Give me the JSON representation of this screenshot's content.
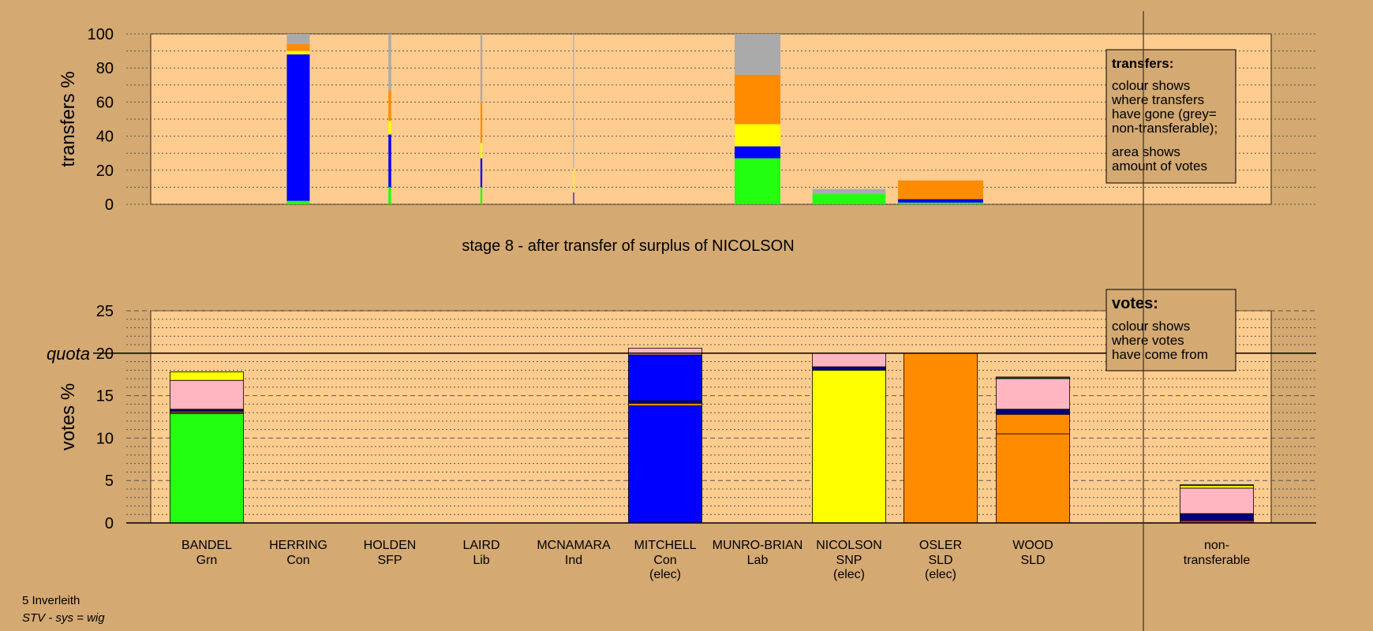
{
  "colors": {
    "background": "#d4a972",
    "plot_bg": "#ffcc8f",
    "Grn": "#22ff11",
    "Con": "#0000ff",
    "SNP": "#ffff00",
    "SLD": "#ff8c00",
    "Lab": "#ffb6c1",
    "Ind": "#aa3344",
    "SFP": "#000080",
    "nontransferable": "#aaaaaa"
  },
  "stage_title": "stage 8 - after transfer of surplus of NICOLSON",
  "footer": {
    "line1": "5 Inverleith",
    "line2": "STV - sys = wig"
  },
  "legend_transfers": {
    "title": "transfers:",
    "lines1": [
      "colour shows",
      "where transfers",
      "have gone (grey=",
      "non-transferable);"
    ],
    "lines2": [
      "area shows",
      "amount of votes"
    ]
  },
  "legend_votes": {
    "title": "votes:",
    "lines": [
      "colour shows",
      "where votes",
      "have come from"
    ]
  },
  "chart_data": [
    {
      "type": "bar",
      "subtype": "stacked-variable-width",
      "ylabel": "transfers %",
      "ylim": [
        0,
        100
      ],
      "yticks": [
        0,
        20,
        40,
        60,
        80,
        100
      ],
      "grid": true,
      "categories": [
        "BANDEL",
        "HERRING",
        "HOLDEN",
        "LAIRD",
        "MCNAMARA",
        "MITCHELL",
        "MUNRO-BRIAN",
        "NICOLSON",
        "OSLER",
        "WOOD"
      ],
      "bars": [
        {
          "category": "HERRING",
          "width_rel": 0.25,
          "segments": [
            {
              "color": "Grn",
              "value": 2
            },
            {
              "color": "Con",
              "value": 86
            },
            {
              "color": "SNP",
              "value": 2
            },
            {
              "color": "SLD",
              "value": 4
            },
            {
              "color": "nontransferable",
              "value": 6
            }
          ]
        },
        {
          "category": "HOLDEN",
          "width_rel": 0.03,
          "segments": [
            {
              "color": "Grn",
              "value": 10
            },
            {
              "color": "Con",
              "value": 31
            },
            {
              "color": "SNP",
              "value": 8
            },
            {
              "color": "SLD",
              "value": 18
            },
            {
              "color": "nontransferable",
              "value": 33
            }
          ]
        },
        {
          "category": "LAIRD",
          "width_rel": 0.02,
          "segments": [
            {
              "color": "Grn",
              "value": 10
            },
            {
              "color": "Con",
              "value": 17
            },
            {
              "color": "SNP",
              "value": 9
            },
            {
              "color": "SLD",
              "value": 24
            },
            {
              "color": "nontransferable",
              "value": 40
            }
          ]
        },
        {
          "category": "MCNAMARA",
          "width_rel": 0.01,
          "segments": [
            {
              "color": "Con",
              "value": 7
            },
            {
              "color": "SNP",
              "value": 14
            },
            {
              "color": "SLD",
              "value": 0
            },
            {
              "color": "nontransferable",
              "value": 79
            }
          ]
        },
        {
          "category": "MUNRO-BRIAN",
          "width_rel": 0.5,
          "segments": [
            {
              "color": "Grn",
              "value": 27
            },
            {
              "color": "Con",
              "value": 7
            },
            {
              "color": "SNP",
              "value": 13
            },
            {
              "color": "SLD",
              "value": 29
            },
            {
              "color": "nontransferable",
              "value": 24
            }
          ]
        },
        {
          "category": "NICOLSON",
          "width_rel": 0.8,
          "segments": [
            {
              "color": "Grn",
              "value": 6
            },
            {
              "color": "nontransferable",
              "value": 3
            }
          ]
        },
        {
          "category": "OSLER",
          "width_rel": 0.93,
          "segments": [
            {
              "color": "Grn",
              "value": 1
            },
            {
              "color": "Con",
              "value": 2
            },
            {
              "color": "SLD",
              "value": 11
            }
          ]
        }
      ]
    },
    {
      "type": "bar",
      "subtype": "stacked",
      "ylabel": "votes %",
      "ylim": [
        0,
        25
      ],
      "yticks": [
        0,
        5,
        10,
        15,
        20,
        25
      ],
      "quota": 20,
      "quota_label": "quota",
      "grid": true,
      "categories": [
        {
          "name": "BANDEL",
          "party": "Grn",
          "elected": ""
        },
        {
          "name": "HERRING",
          "party": "Con",
          "elected": ""
        },
        {
          "name": "HOLDEN",
          "party": "SFP",
          "elected": ""
        },
        {
          "name": "LAIRD",
          "party": "Lib",
          "elected": ""
        },
        {
          "name": "MCNAMARA",
          "party": "Ind",
          "elected": ""
        },
        {
          "name": "MITCHELL",
          "party": "Con",
          "elected": "(elec)"
        },
        {
          "name": "MUNRO-BRIAN",
          "party": "Lab",
          "elected": ""
        },
        {
          "name": "NICOLSON",
          "party": "SNP",
          "elected": "(elec)"
        },
        {
          "name": "OSLER",
          "party": "SLD",
          "elected": "(elec)"
        },
        {
          "name": "WOOD",
          "party": "SLD",
          "elected": ""
        }
      ],
      "nontransferable_label": [
        "non-",
        "transferable"
      ],
      "bars": [
        {
          "category": "BANDEL",
          "segments": [
            {
              "color": "Grn",
              "value": 12.9
            },
            {
              "color": "SNP",
              "value": 0.1
            },
            {
              "color": "Ind",
              "value": 0.2
            },
            {
              "color": "SFP",
              "value": 0.2
            },
            {
              "color": "Lab",
              "value": 3.4
            },
            {
              "color": "SNP",
              "value": 1.0
            }
          ]
        },
        {
          "category": "MITCHELL",
          "segments": [
            {
              "color": "Con",
              "value": 13.8
            },
            {
              "color": "SLD",
              "value": 0.3
            },
            {
              "color": "SFP",
              "value": 0.3
            },
            {
              "color": "Con",
              "value": 5.4
            },
            {
              "color": "Lab",
              "value": 0.8
            }
          ]
        },
        {
          "category": "NICOLSON",
          "segments": [
            {
              "color": "SNP",
              "value": 18.0
            },
            {
              "color": "SFP",
              "value": 0.4
            },
            {
              "color": "Lab",
              "value": 1.6
            }
          ]
        },
        {
          "category": "OSLER",
          "segments": [
            {
              "color": "SLD",
              "value": 20.0
            }
          ]
        },
        {
          "category": "WOOD",
          "segments": [
            {
              "color": "SLD",
              "value": 10.5
            },
            {
              "color": "SLD",
              "value": 2.3
            },
            {
              "color": "SFP",
              "value": 0.6
            },
            {
              "color": "Lab",
              "value": 3.6
            },
            {
              "color": "Grn",
              "value": 0.1
            },
            {
              "color": "nontransferable",
              "value": 0.1
            }
          ]
        },
        {
          "category": "nontransferable",
          "segments": [
            {
              "color": "Ind",
              "value": 0.3
            },
            {
              "color": "SFP",
              "value": 0.8
            },
            {
              "color": "Lab",
              "value": 3.0
            },
            {
              "color": "SNP",
              "value": 0.3
            },
            {
              "color": "nontransferable",
              "value": 0.1
            }
          ]
        }
      ]
    }
  ]
}
